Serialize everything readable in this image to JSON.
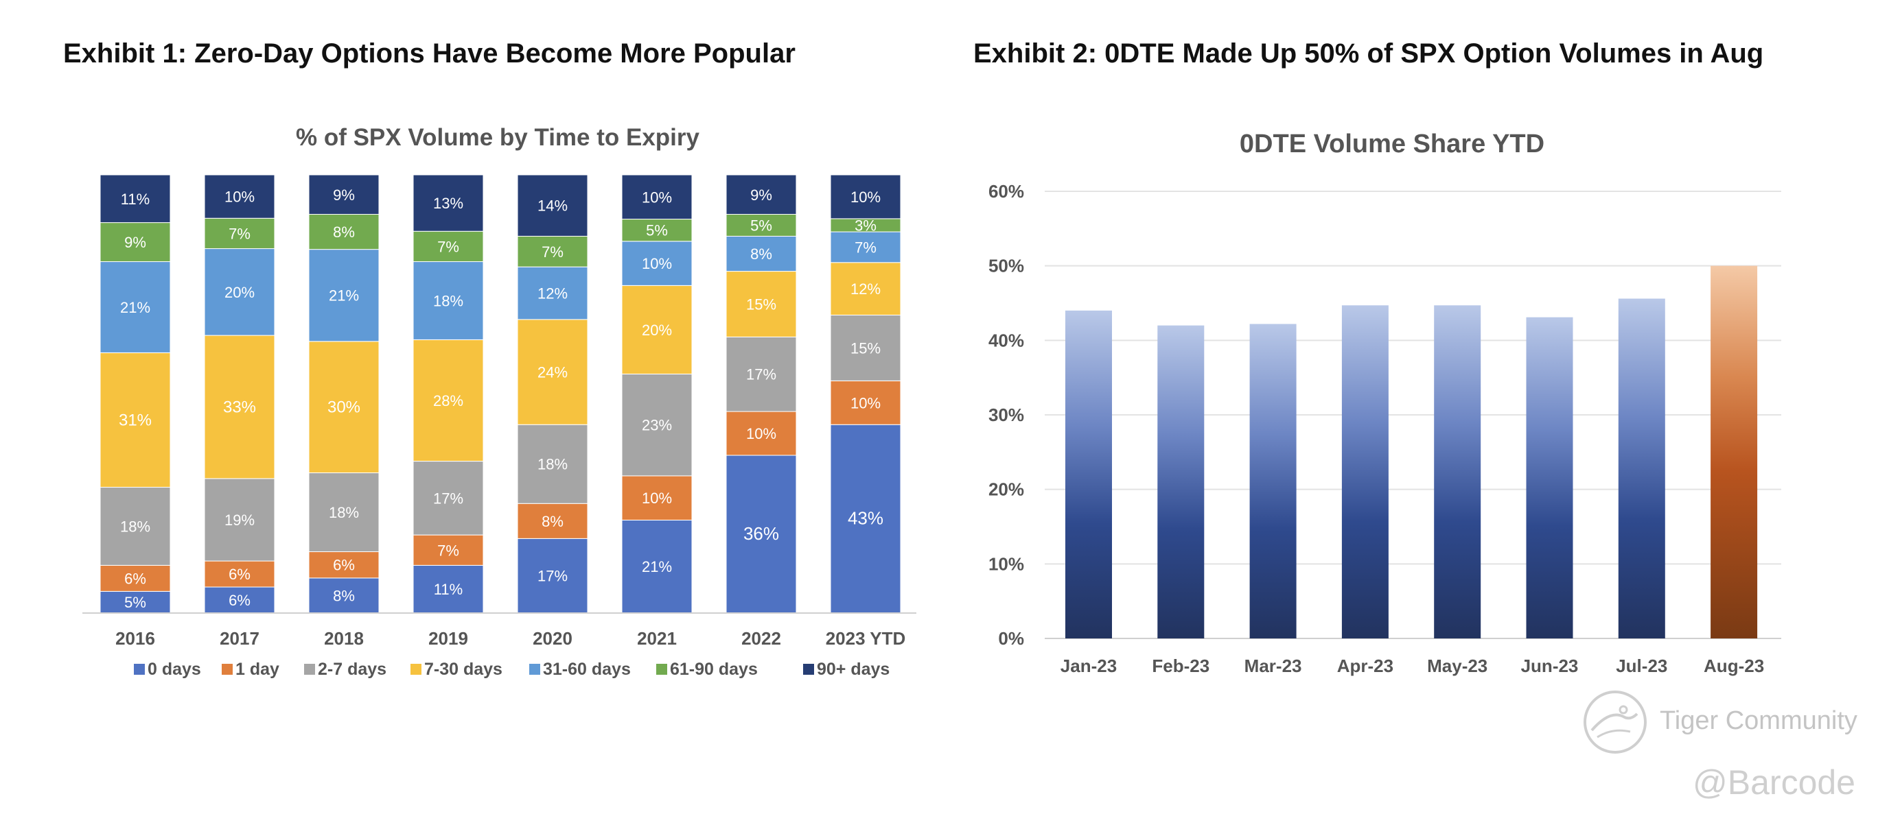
{
  "exhibit1": {
    "heading": "Exhibit 1: Zero-Day Options Have Become More Popular"
  },
  "exhibit2": {
    "heading": "Exhibit 2: 0DTE Made Up 50% of SPX Option Volumes in Aug"
  },
  "watermark": {
    "brand": "Tiger Community",
    "handle": "@Barcode"
  },
  "colors": {
    "0 days": "#4f72c2",
    "1 day": "#e07f3c",
    "2-7 days": "#a5a5a5",
    "7-30 days": "#f6c23f",
    "31-60 days": "#609ad6",
    "61-90 days": "#72aa4f",
    "90+ days": "#263d73",
    "blue_top": "#b9c8e8",
    "blue_bottom": "#22335f",
    "orange_top": "#f4c9a6",
    "orange_mid": "#b8541f",
    "orange_bottom": "#7a3a14"
  },
  "chart_data": [
    {
      "type": "bar",
      "stacked": true,
      "normalized": true,
      "title": "% of SPX Volume by Time to Expiry",
      "categories": [
        "2016",
        "2017",
        "2018",
        "2019",
        "2020",
        "2021",
        "2022",
        "2023 YTD"
      ],
      "series": [
        {
          "name": "0 days",
          "values": [
            5,
            6,
            8,
            11,
            17,
            21,
            36,
            43
          ]
        },
        {
          "name": "1 day",
          "values": [
            6,
            6,
            6,
            7,
            8,
            10,
            10,
            10
          ]
        },
        {
          "name": "2-7 days",
          "values": [
            18,
            19,
            18,
            17,
            18,
            23,
            17,
            15
          ]
        },
        {
          "name": "7-30 days",
          "values": [
            31,
            33,
            30,
            28,
            24,
            20,
            15,
            12
          ]
        },
        {
          "name": "31-60 days",
          "values": [
            21,
            20,
            21,
            18,
            12,
            10,
            8,
            7
          ]
        },
        {
          "name": "61-90 days",
          "values": [
            9,
            7,
            8,
            7,
            7,
            5,
            5,
            3
          ]
        },
        {
          "name": "90+ days",
          "values": [
            11,
            10,
            9,
            13,
            14,
            10,
            9,
            10
          ]
        }
      ],
      "value_suffix": "%",
      "legend": "bottom",
      "grid": false
    },
    {
      "type": "bar",
      "title": "0DTE Volume Share YTD",
      "categories": [
        "Jan-23",
        "Feb-23",
        "Mar-23",
        "Apr-23",
        "May-23",
        "Jun-23",
        "Jul-23",
        "Aug-23"
      ],
      "values": [
        44,
        42,
        42.2,
        44.7,
        44.7,
        43.1,
        45.6,
        50
      ],
      "highlight": "Aug-23",
      "ylim": [
        0,
        60
      ],
      "yticks": [
        0,
        10,
        20,
        30,
        40,
        50,
        60
      ],
      "ytick_labels": [
        "0%",
        "10%",
        "20%",
        "30%",
        "40%",
        "50%",
        "60%"
      ],
      "grid": true
    }
  ]
}
